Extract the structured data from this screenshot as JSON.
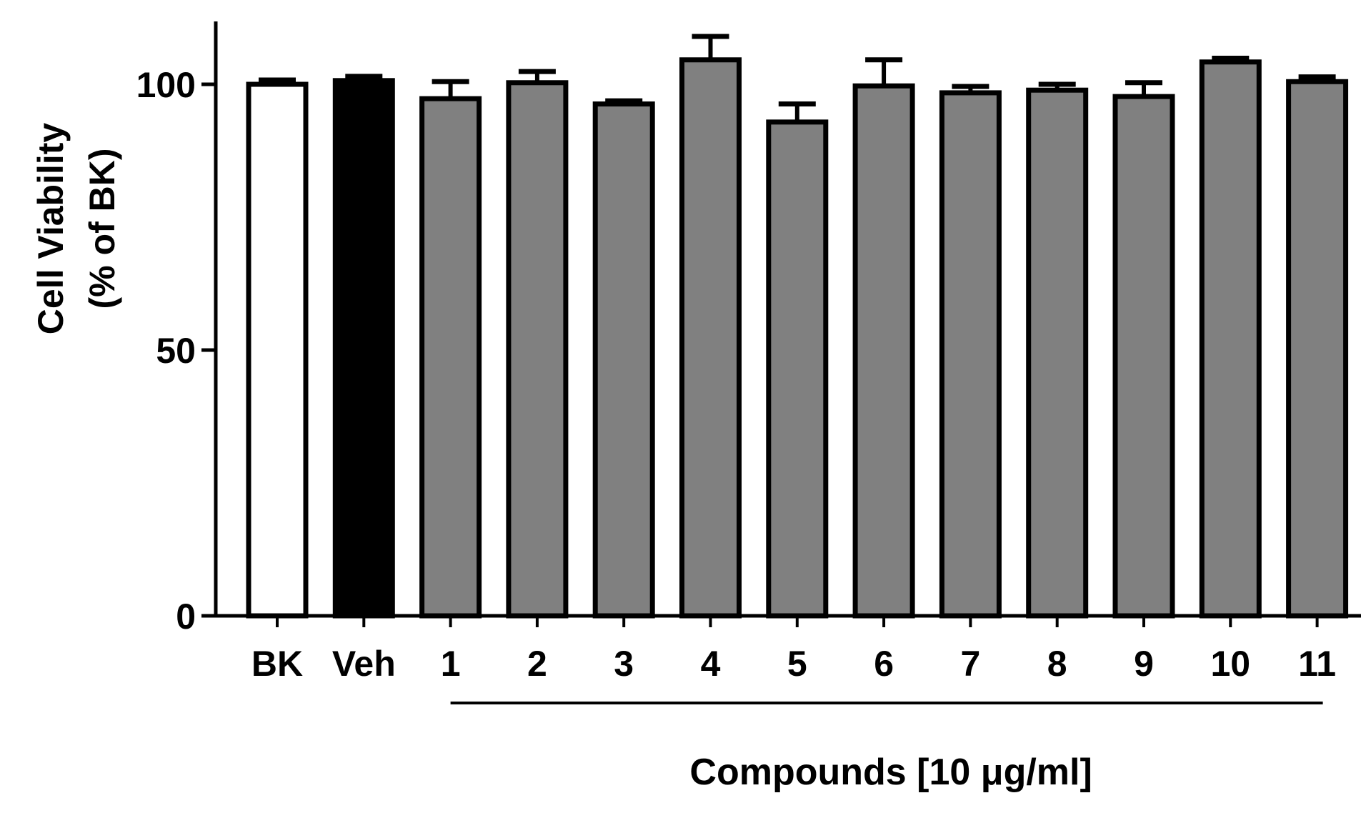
{
  "chart_data": {
    "type": "bar",
    "title": "",
    "ylabel_line1": "Cell Viability",
    "ylabel_line2": "(% of BK)",
    "xlabel": "Compounds [10 μg/ml]",
    "ylim": [
      0,
      112
    ],
    "yticks": [
      0,
      50,
      100
    ],
    "ytick_labels": [
      "0",
      "50",
      "100"
    ],
    "categories": [
      "BK",
      "Veh",
      "1",
      "2",
      "3",
      "4",
      "5",
      "6",
      "7",
      "8",
      "9",
      "10",
      "11"
    ],
    "values": [
      100,
      100.7,
      97.3,
      100.3,
      96.3,
      104.6,
      92.9,
      99.7,
      98.4,
      98.9,
      97.7,
      104.2,
      100.5
    ],
    "errors": [
      0.8,
      0.8,
      3.2,
      2.1,
      0.6,
      4.4,
      3.4,
      4.9,
      1.2,
      1.1,
      2.6,
      0.7,
      0.9
    ],
    "bar_fills": [
      "#ffffff",
      "#000000",
      "#808080",
      "#808080",
      "#808080",
      "#808080",
      "#808080",
      "#808080",
      "#808080",
      "#808080",
      "#808080",
      "#808080",
      "#808080"
    ],
    "compound_group_first": 2,
    "compound_group_last": 12,
    "grid": false,
    "legend": "none"
  }
}
